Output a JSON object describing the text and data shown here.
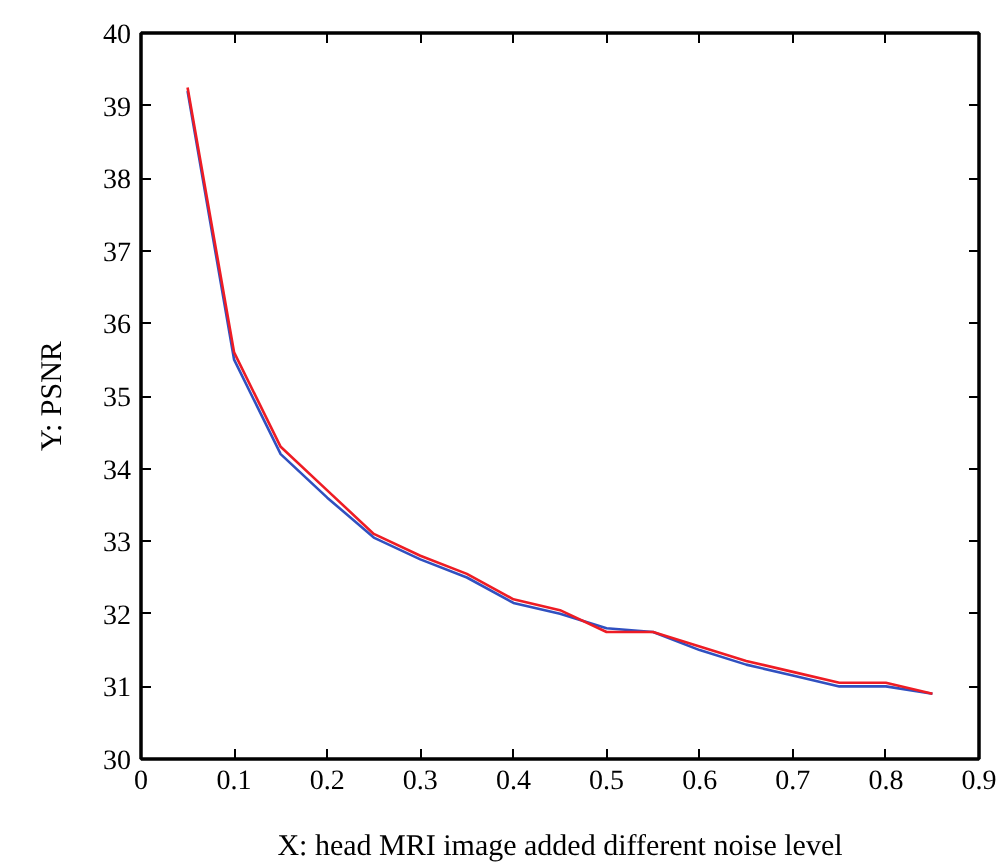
{
  "chart_data": {
    "type": "line",
    "xlabel": "X: head MRI image added different noise level",
    "ylabel": "Y: PSNR",
    "x": [
      0.05,
      0.1,
      0.15,
      0.2,
      0.25,
      0.3,
      0.35,
      0.4,
      0.45,
      0.5,
      0.55,
      0.6,
      0.65,
      0.7,
      0.75,
      0.8,
      0.85
    ],
    "series": [
      {
        "color": "#3050c0",
        "values": [
          39.2,
          35.5,
          34.2,
          33.6,
          33.05,
          32.75,
          32.5,
          32.15,
          32.0,
          31.8,
          31.75,
          31.5,
          31.3,
          31.15,
          31.0,
          31.0,
          30.9
        ]
      },
      {
        "color": "#ee1c24",
        "values": [
          39.25,
          35.6,
          34.3,
          33.7,
          33.1,
          32.8,
          32.55,
          32.2,
          32.05,
          31.75,
          31.75,
          31.55,
          31.35,
          31.2,
          31.05,
          31.05,
          30.9
        ]
      }
    ],
    "xlim": [
      0,
      0.9
    ],
    "ylim": [
      30,
      40
    ],
    "xticks": [
      0,
      0.1,
      0.2,
      0.3,
      0.4,
      0.5,
      0.6,
      0.7,
      0.8,
      0.9
    ],
    "yticks": [
      30,
      31,
      32,
      33,
      34,
      35,
      36,
      37,
      38,
      39,
      40
    ],
    "grid": false,
    "marker": "none",
    "line_style": "solid"
  }
}
